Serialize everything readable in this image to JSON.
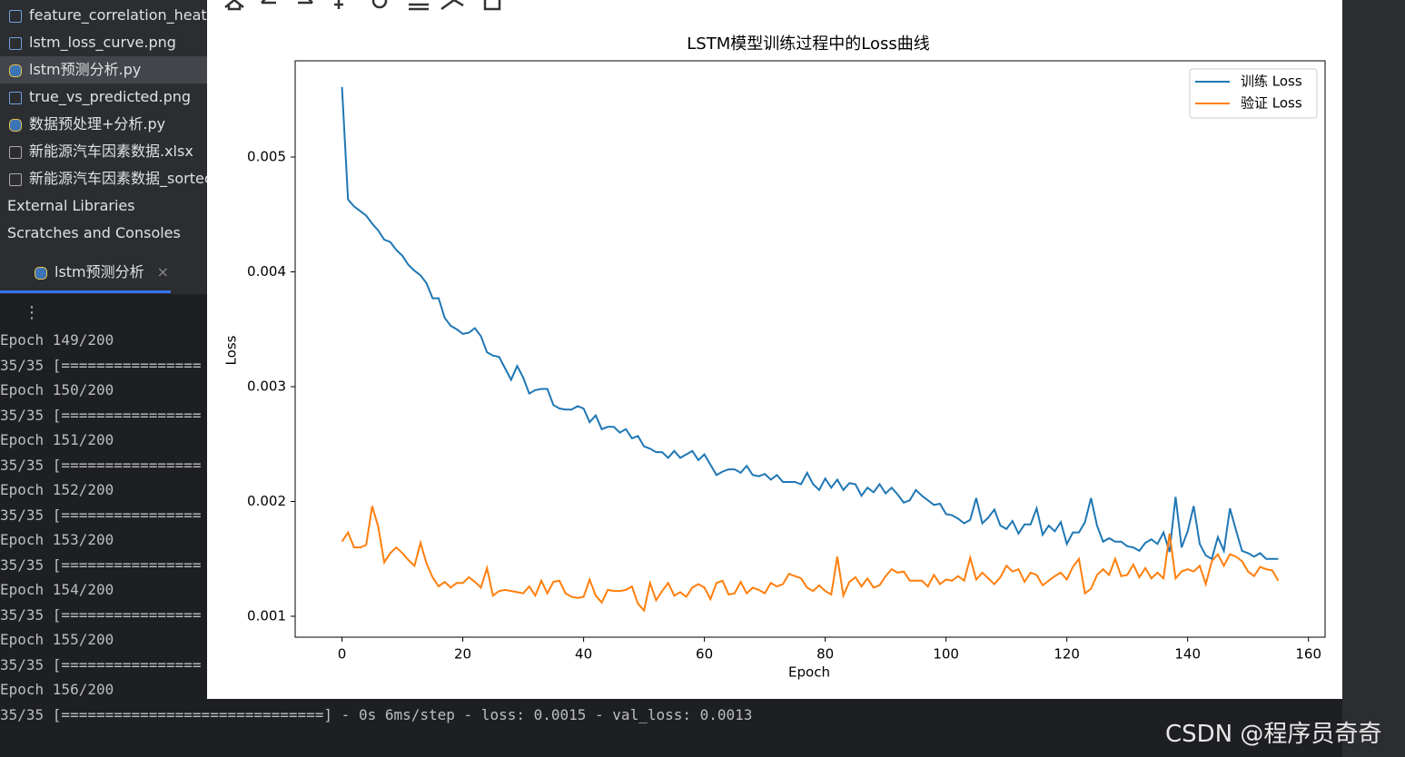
{
  "sidebar": {
    "items": [
      {
        "label": "feature_correlation_heatm",
        "icon": "img"
      },
      {
        "label": "lstm_loss_curve.png",
        "icon": "img"
      },
      {
        "label": "lstm预测分析.py",
        "icon": "py",
        "selected": true
      },
      {
        "label": "true_vs_predicted.png",
        "icon": "img"
      },
      {
        "label": "数据预处理+分析.py",
        "icon": "py"
      },
      {
        "label": "新能源汽车因素数据.xlsx",
        "icon": "q"
      },
      {
        "label": "新能源汽车因素数据_sortec",
        "icon": "q"
      },
      {
        "label": "External Libraries",
        "icon": "none"
      },
      {
        "label": "Scratches and Consoles",
        "icon": "none"
      }
    ]
  },
  "run_tab": {
    "title": "lstm预测分析"
  },
  "console": {
    "lines": [
      "Epoch 149/200",
      "35/35 [================",
      "Epoch 150/200",
      "35/35 [================",
      "Epoch 151/200",
      "35/35 [================",
      "Epoch 152/200",
      "35/35 [================",
      "Epoch 153/200",
      "35/35 [================",
      "Epoch 154/200",
      "35/35 [================",
      "Epoch 155/200",
      "35/35 [================",
      "Epoch 156/200",
      "35/35 [==============================] - 0s 6ms/step - loss: 0.0015 - val_loss: 0.0013"
    ]
  },
  "watermark": "CSDN @程序员奇奇",
  "chart_data": {
    "type": "line",
    "title": "LSTM模型训练过程中的Loss曲线",
    "x_label": "Epoch",
    "y_label": "Loss",
    "xlim": [
      -7.75,
      162.75
    ],
    "ylim": [
      0.000818,
      0.005838
    ],
    "xticks": [
      0,
      20,
      40,
      60,
      80,
      100,
      120,
      140,
      160
    ],
    "yticks": [
      0.001,
      0.002,
      0.003,
      0.004,
      0.005
    ],
    "grid": false,
    "legend": "upper right",
    "x": [
      0,
      1,
      2,
      3,
      4,
      5,
      6,
      7,
      8,
      9,
      10,
      11,
      12,
      13,
      14,
      15,
      16,
      17,
      18,
      19,
      20,
      21,
      22,
      23,
      24,
      25,
      26,
      27,
      28,
      29,
      30,
      31,
      32,
      33,
      34,
      35,
      36,
      37,
      38,
      39,
      40,
      41,
      42,
      43,
      44,
      45,
      46,
      47,
      48,
      49,
      50,
      51,
      52,
      53,
      54,
      55,
      56,
      57,
      58,
      59,
      60,
      61,
      62,
      63,
      64,
      65,
      66,
      67,
      68,
      69,
      70,
      71,
      72,
      73,
      74,
      75,
      76,
      77,
      78,
      79,
      80,
      81,
      82,
      83,
      84,
      85,
      86,
      87,
      88,
      89,
      90,
      91,
      92,
      93,
      94,
      95,
      96,
      97,
      98,
      99,
      100,
      101,
      102,
      103,
      104,
      105,
      106,
      107,
      108,
      109,
      110,
      111,
      112,
      113,
      114,
      115,
      116,
      117,
      118,
      119,
      120,
      121,
      122,
      123,
      124,
      125,
      126,
      127,
      128,
      129,
      130,
      131,
      132,
      133,
      134,
      135,
      136,
      137,
      138,
      139,
      140,
      141,
      142,
      143,
      144,
      145,
      146,
      147,
      148,
      149,
      150,
      151,
      152,
      153,
      154,
      155
    ],
    "series": [
      {
        "name": "训练 Loss",
        "color": "#1f77b4",
        "values": [
          0.00561,
          0.00463,
          0.00457,
          0.00453,
          0.00449,
          0.00442,
          0.00436,
          0.00428,
          0.00426,
          0.00419,
          0.00414,
          0.00406,
          0.00401,
          0.00397,
          0.0039,
          0.00377,
          0.00377,
          0.0036,
          0.00353,
          0.0035,
          0.00346,
          0.00347,
          0.00351,
          0.00344,
          0.0033,
          0.00327,
          0.00326,
          0.00316,
          0.00306,
          0.00318,
          0.00308,
          0.00294,
          0.00297,
          0.00298,
          0.00298,
          0.00284,
          0.00281,
          0.0028,
          0.0028,
          0.00283,
          0.00281,
          0.00269,
          0.00275,
          0.00263,
          0.00265,
          0.00265,
          0.0026,
          0.00263,
          0.00255,
          0.00257,
          0.00248,
          0.00246,
          0.00243,
          0.00243,
          0.00238,
          0.00244,
          0.00238,
          0.00241,
          0.00244,
          0.00236,
          0.00241,
          0.00232,
          0.00223,
          0.00226,
          0.00228,
          0.00228,
          0.00225,
          0.00231,
          0.00223,
          0.00222,
          0.00224,
          0.00219,
          0.00223,
          0.00217,
          0.00217,
          0.00217,
          0.00215,
          0.00225,
          0.00215,
          0.0021,
          0.0022,
          0.00212,
          0.00219,
          0.0021,
          0.00216,
          0.00215,
          0.00205,
          0.00212,
          0.00208,
          0.00215,
          0.00207,
          0.00212,
          0.00206,
          0.00199,
          0.00201,
          0.0021,
          0.00205,
          0.00201,
          0.00197,
          0.00198,
          0.00189,
          0.00188,
          0.00185,
          0.00181,
          0.00184,
          0.00203,
          0.00181,
          0.00186,
          0.00193,
          0.00179,
          0.00176,
          0.00183,
          0.00172,
          0.0018,
          0.0018,
          0.00194,
          0.00171,
          0.00179,
          0.00174,
          0.00182,
          0.00163,
          0.00173,
          0.00173,
          0.00182,
          0.00203,
          0.00179,
          0.00165,
          0.00168,
          0.00165,
          0.00165,
          0.00161,
          0.0016,
          0.00157,
          0.00164,
          0.00167,
          0.00163,
          0.00173,
          0.00156,
          0.00204,
          0.0016,
          0.00174,
          0.00196,
          0.00163,
          0.00153,
          0.0015,
          0.00169,
          0.00157,
          0.00194,
          0.00175,
          0.00157,
          0.00155,
          0.00152,
          0.00155,
          0.0015,
          0.0015,
          0.0015
        ]
      },
      {
        "name": "验证 Loss",
        "color": "#ff7f0e",
        "values": [
          0.00165,
          0.00173,
          0.0016,
          0.0016,
          0.00162,
          0.00196,
          0.00178,
          0.00147,
          0.00155,
          0.0016,
          0.00155,
          0.00149,
          0.00144,
          0.00164,
          0.00146,
          0.00134,
          0.00126,
          0.0013,
          0.00125,
          0.00129,
          0.00129,
          0.00134,
          0.0013,
          0.00125,
          0.00142,
          0.00118,
          0.00122,
          0.00123,
          0.00122,
          0.00121,
          0.0012,
          0.00126,
          0.00118,
          0.00131,
          0.0012,
          0.0013,
          0.00131,
          0.0012,
          0.00117,
          0.00116,
          0.00117,
          0.00132,
          0.00118,
          0.00112,
          0.00123,
          0.00122,
          0.00122,
          0.00123,
          0.00126,
          0.00111,
          0.00105,
          0.00129,
          0.00114,
          0.00122,
          0.00129,
          0.00118,
          0.00121,
          0.00117,
          0.00125,
          0.00128,
          0.00125,
          0.00115,
          0.00129,
          0.00131,
          0.00119,
          0.0012,
          0.0013,
          0.0012,
          0.00125,
          0.00123,
          0.0012,
          0.00129,
          0.00126,
          0.00128,
          0.00137,
          0.00135,
          0.00133,
          0.00125,
          0.00122,
          0.00127,
          0.00122,
          0.00119,
          0.00152,
          0.00118,
          0.0013,
          0.00134,
          0.00126,
          0.00133,
          0.00125,
          0.00127,
          0.00135,
          0.00141,
          0.00138,
          0.00139,
          0.00131,
          0.00131,
          0.00131,
          0.00126,
          0.00136,
          0.00128,
          0.00132,
          0.00131,
          0.00135,
          0.00131,
          0.00151,
          0.00132,
          0.00138,
          0.00133,
          0.00128,
          0.00134,
          0.00144,
          0.00139,
          0.00141,
          0.0013,
          0.00138,
          0.00136,
          0.00127,
          0.00131,
          0.00135,
          0.00138,
          0.00132,
          0.00143,
          0.0015,
          0.0012,
          0.00124,
          0.00136,
          0.00141,
          0.00136,
          0.0015,
          0.00135,
          0.00136,
          0.00145,
          0.00134,
          0.00142,
          0.00133,
          0.00138,
          0.00133,
          0.00172,
          0.00133,
          0.00139,
          0.00141,
          0.00139,
          0.00144,
          0.00128,
          0.00148,
          0.00154,
          0.00144,
          0.00154,
          0.00152,
          0.00148,
          0.00139,
          0.00135,
          0.00143,
          0.00141,
          0.0014,
          0.00131
        ]
      }
    ]
  }
}
